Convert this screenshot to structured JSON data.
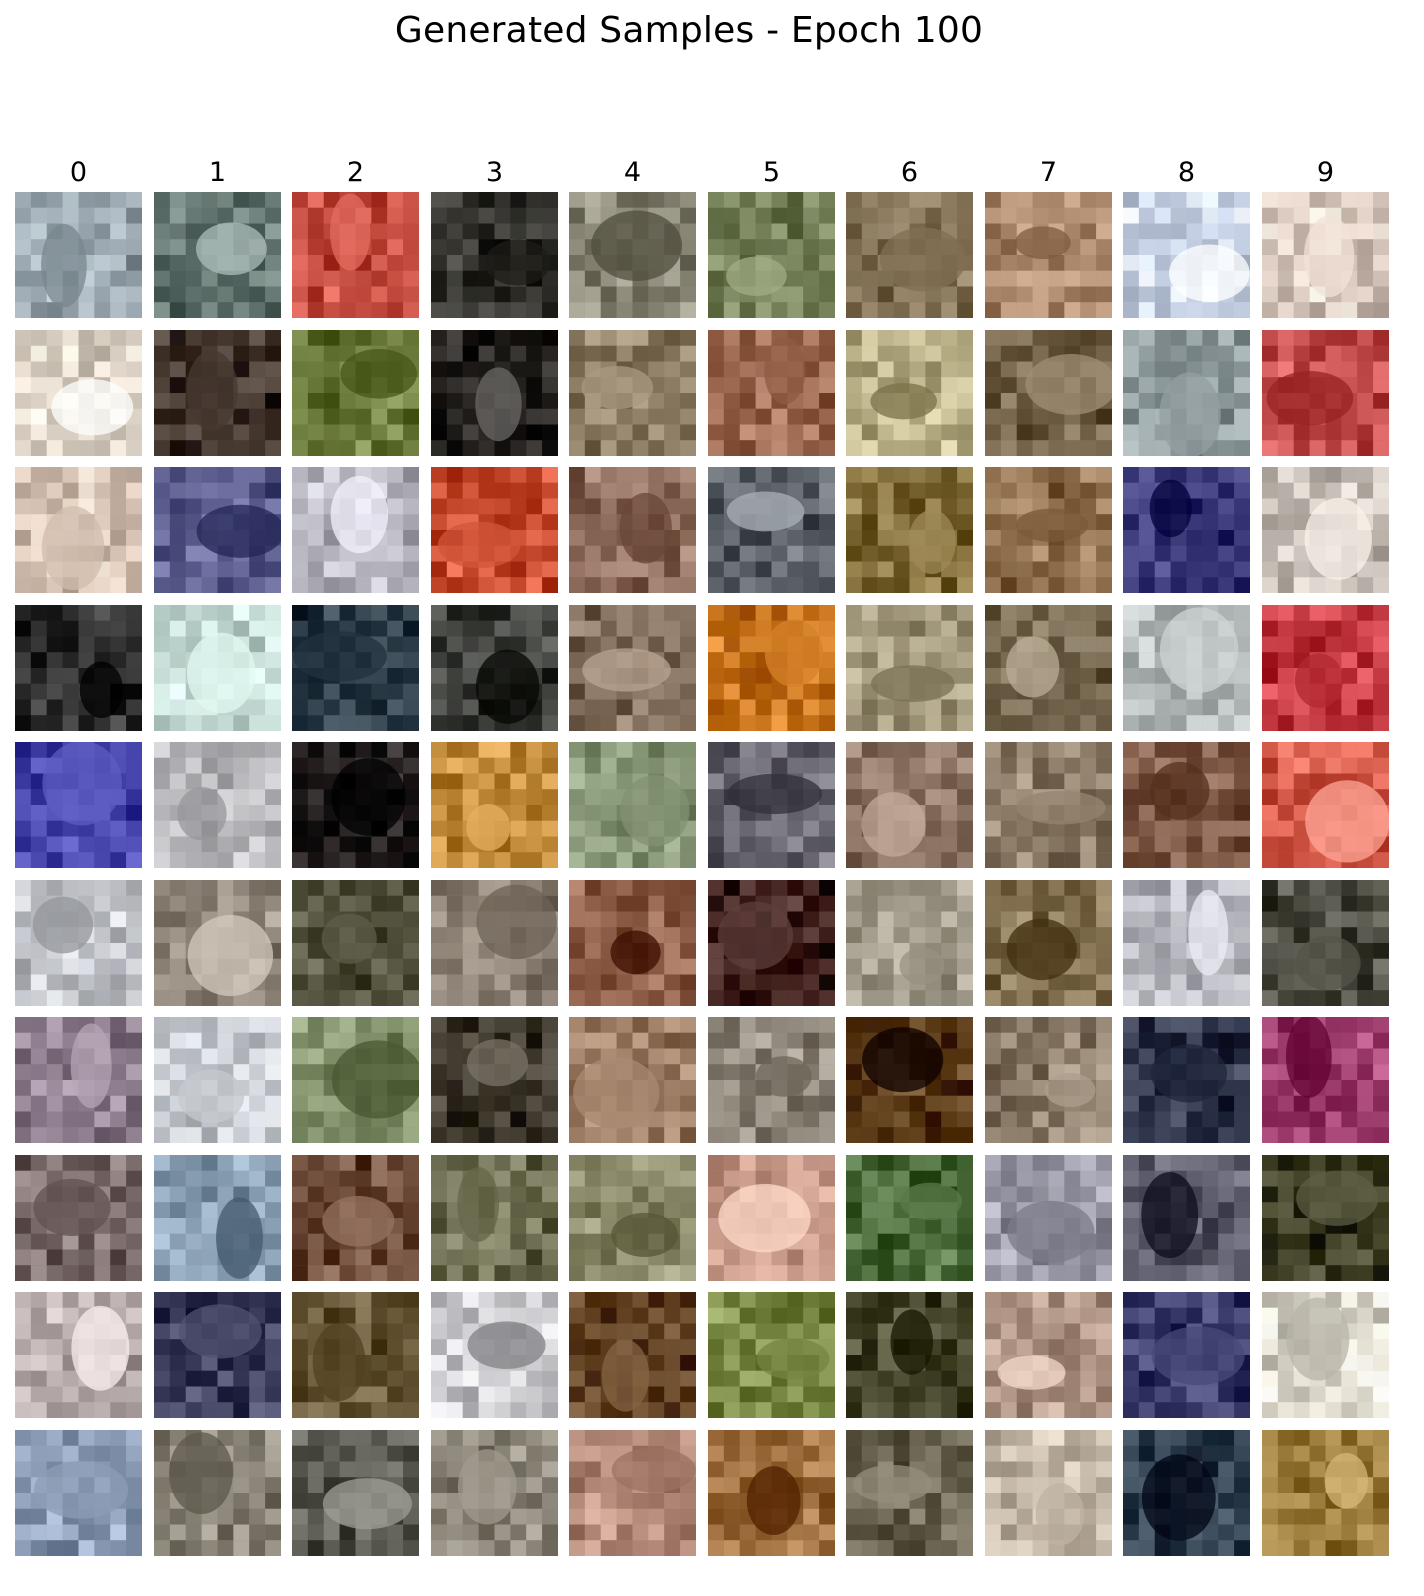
{
  "title": "Generated Samples - Epoch 100",
  "columns": [
    "0",
    "1",
    "2",
    "3",
    "4",
    "5",
    "6",
    "7",
    "8",
    "9"
  ],
  "rows": 10,
  "palette": [
    [
      "#9aa7b0",
      "#5d6f6a",
      "#c24b3f",
      "#2b2a25",
      "#8d8a7a",
      "#6e7a52",
      "#7b6a4e",
      "#a88468",
      "#c9d4e8",
      "#d9c9be"
    ],
    [
      "#d9cfc2",
      "#3b2e25",
      "#6a7a3a",
      "#1c1916",
      "#8a7a62",
      "#9e6a52",
      "#b9b088",
      "#6b5a40",
      "#8e9a9c",
      "#c24d4d"
    ],
    [
      "#d8c4b6",
      "#5a5c8c",
      "#b9b8c2",
      "#c64a2e",
      "#8c6a5a",
      "#5c6268",
      "#7e6a36",
      "#8a6a48",
      "#3a3a7a",
      "#c8c0b8"
    ],
    [
      "#2c2c2c",
      "#bcd2cc",
      "#2a3a46",
      "#3c3e3a",
      "#7e6a58",
      "#c9761f",
      "#9e9478",
      "#6e6048",
      "#aeb4b4",
      "#c23840"
    ],
    [
      "#4a4ab0",
      "#b4b4b8",
      "#1a1414",
      "#c08a3a",
      "#8a9a7a",
      "#6a6872",
      "#8a7262",
      "#8a7a66",
      "#7a5442",
      "#d45a4a"
    ],
    [
      "#c4c6cc",
      "#948a7e",
      "#4c4c38",
      "#8c8074",
      "#8a5a44",
      "#3a1a16",
      "#a29c8c",
      "#7a6848",
      "#b4b4bc",
      "#4a4a40"
    ],
    [
      "#8a7a8a",
      "#c8ccd2",
      "#7a8a64",
      "#3a3428",
      "#9a7a62",
      "#8c8478",
      "#5a3a16",
      "#8a7a68",
      "#2a3046",
      "#9a3a6a"
    ],
    [
      "#7a6a6a",
      "#8aa0b4",
      "#6a4836",
      "#6a6a4e",
      "#8a8a6a",
      "#c89a8a",
      "#4a6a3a",
      "#9a9aa8",
      "#5a5a6a",
      "#3a3a20"
    ],
    [
      "#b4a8a8",
      "#3a3a5a",
      "#6a5a3a",
      "#c8c8cc",
      "#5a3a1a",
      "#7a8a46",
      "#4a4a30",
      "#b49a8a",
      "#3a3a6a",
      "#d8d4c8"
    ],
    [
      "#8a9ab4",
      "#8a8478",
      "#5a5a52",
      "#8a8478",
      "#b48a7a",
      "#9a6a3a",
      "#6a6452",
      "#c4b8a8",
      "#2a3a4a",
      "#9a7a3a"
    ]
  ]
}
